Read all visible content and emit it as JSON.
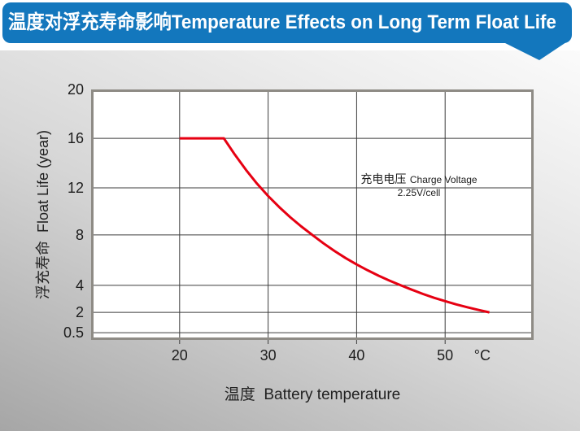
{
  "header": {
    "title": "温度对浮充寿命影响Temperature Effects on Long Term Float Life"
  },
  "colors": {
    "banner_blue": "#1377bd",
    "curve_red": "#e60012",
    "plot_border": "#8e8b85",
    "gridline": "#3c3c3c",
    "plot_background": "#ffffff"
  },
  "chart_data": {
    "type": "line",
    "title": "温度对浮充寿命影响Temperature Effects on Long Term Float Life",
    "xlabel": "温度  Battery temperature",
    "ylabel": "浮充寿命  Float Life (year)",
    "x_unit": "°C",
    "xlim": [
      10,
      60
    ],
    "ylim": [
      0.5,
      20
    ],
    "x_ticks": [
      20,
      30,
      40,
      50
    ],
    "y_ticks": [
      20,
      16,
      12,
      8,
      4,
      2,
      0.5
    ],
    "grid": true,
    "legend_position": "none",
    "annotation": {
      "label_cjk": "充电电压",
      "label_en": "Charge Voltage",
      "value": "2.25V/cell"
    },
    "series": [
      {
        "name": "Float life vs battery temperature at 2.25V/cell",
        "color": "#e60012",
        "points": [
          [
            20,
            16
          ],
          [
            25,
            16
          ],
          [
            26.25,
            14.67
          ],
          [
            27.5,
            13.45
          ],
          [
            28.75,
            12.34
          ],
          [
            30,
            11.31
          ],
          [
            31.25,
            10.37
          ],
          [
            32.5,
            9.51
          ],
          [
            33.75,
            8.72
          ],
          [
            35,
            8
          ],
          [
            36.25,
            7.34
          ],
          [
            37.5,
            6.73
          ],
          [
            38.75,
            6.17
          ],
          [
            40,
            5.66
          ],
          [
            41.25,
            5.19
          ],
          [
            42.5,
            4.76
          ],
          [
            43.75,
            4.36
          ],
          [
            45,
            4
          ],
          [
            46.25,
            3.67
          ],
          [
            47.5,
            3.36
          ],
          [
            48.75,
            3.08
          ],
          [
            50,
            2.83
          ],
          [
            51.25,
            2.59
          ],
          [
            52.5,
            2.38
          ],
          [
            53.75,
            2.18
          ],
          [
            55,
            2
          ]
        ]
      }
    ]
  }
}
